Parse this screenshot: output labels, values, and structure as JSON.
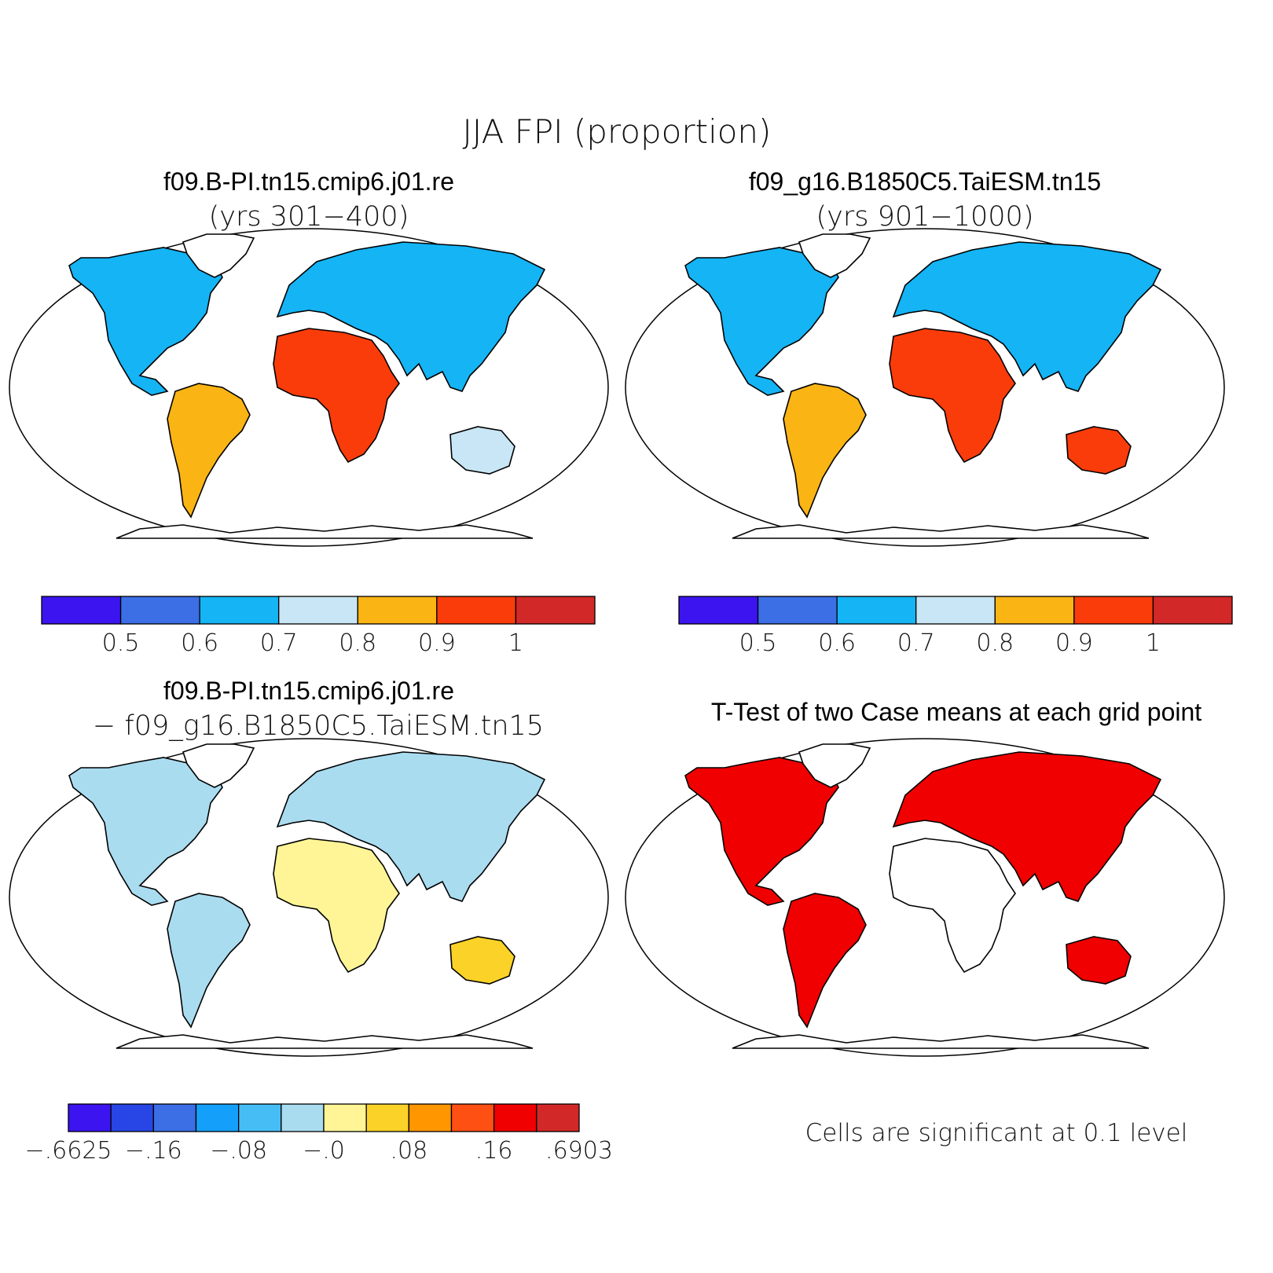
{
  "figure": {
    "title": "JJA FPI (proportion)"
  },
  "panels": [
    {
      "id": "case1",
      "title": "f09.B-PI.tn15.cmip6.j01.re",
      "subtitle": "(yrs 301−400)"
    },
    {
      "id": "case2",
      "title": "f09_g16.B1850C5.TaiESM.tn15",
      "subtitle": "(yrs 901−1000)"
    },
    {
      "id": "diff",
      "title": "f09.B-PI.tn15.cmip6.j01.re",
      "subtitle": "− f09_g16.B1850C5.TaiESM.tn15"
    },
    {
      "id": "ttest",
      "title": "T-Test of two Case means at each grid point",
      "subtitle": ""
    }
  ],
  "colorbars": {
    "fpi": {
      "colors": [
        "#3c14f0",
        "#3c6ee6",
        "#14b4f5",
        "#c8e6f5",
        "#fab414",
        "#fa3c0a",
        "#d22828"
      ],
      "labels": [
        "0.5",
        "0.6",
        "0.7",
        "0.8",
        "0.9",
        "1"
      ]
    },
    "diff": {
      "colors": [
        "#3c14f0",
        "#2846e6",
        "#3c6ee6",
        "#14a0fa",
        "#46bef5",
        "#aadcf0",
        "#fff596",
        "#fad228",
        "#ff9600",
        "#ff5014",
        "#f00000",
        "#d22828"
      ],
      "labels": [
        "−.6625",
        "−.16",
        "−.08",
        "−.0",
        ".08",
        ".16",
        ".6903"
      ]
    }
  },
  "significance_note": "Cells are significant at 0.1 level",
  "map_fill_colors": {
    "case1": {
      "namerica": "#14b4f5",
      "samerica": "#fab414",
      "africa": "#fa3c0a",
      "eurasia": "#14b4f5",
      "australia": "#c8e6f5",
      "greenland": "#ffffff"
    },
    "case2": {
      "namerica": "#14b4f5",
      "samerica": "#fab414",
      "africa": "#fa3c0a",
      "eurasia": "#14b4f5",
      "australia": "#fa3c0a",
      "greenland": "#ffffff"
    },
    "diff": {
      "namerica": "#aadcf0",
      "samerica": "#aadcf0",
      "africa": "#fff596",
      "eurasia": "#aadcf0",
      "australia": "#fad228",
      "greenland": "#ffffff"
    },
    "ttest": {
      "namerica": "#f00000",
      "samerica": "#f00000",
      "africa": "#ffffff",
      "eurasia": "#f00000",
      "australia": "#f00000",
      "greenland": "#ffffff"
    }
  }
}
